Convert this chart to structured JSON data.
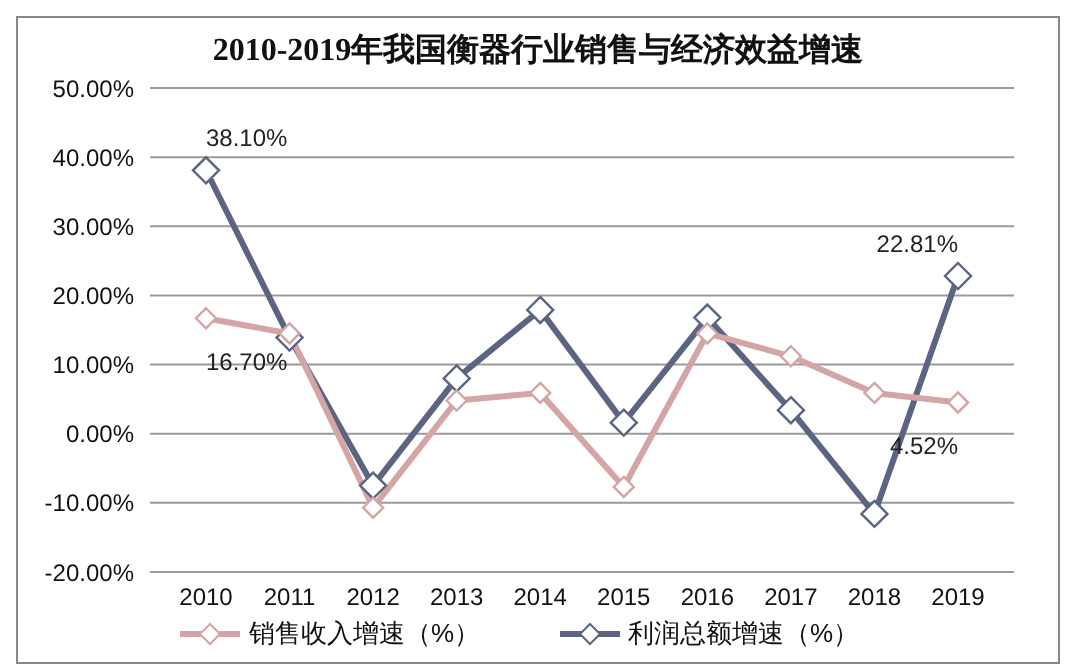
{
  "chart_data": {
    "type": "line",
    "title": "2010-2019年我国衡器行业销售与经济效益增速",
    "categories": [
      "2010",
      "2011",
      "2012",
      "2013",
      "2014",
      "2015",
      "2016",
      "2017",
      "2018",
      "2019"
    ],
    "series": [
      {
        "name": "销售收入增速（%）",
        "color": "#d4a5a5",
        "values": [
          16.7,
          14.5,
          -10.7,
          4.8,
          5.9,
          -7.7,
          14.5,
          11.2,
          5.9,
          4.52
        ],
        "value_labels": [
          "16.70%",
          null,
          null,
          null,
          null,
          null,
          null,
          null,
          null,
          "4.52%"
        ]
      },
      {
        "name": "利润总额增速（%）",
        "color": "#5b6582",
        "values": [
          38.1,
          13.9,
          -7.5,
          8.0,
          17.9,
          1.6,
          16.8,
          3.4,
          -11.6,
          22.81
        ],
        "value_labels": [
          "38.10%",
          null,
          null,
          null,
          null,
          null,
          null,
          null,
          null,
          "22.81%"
        ]
      }
    ],
    "ylim": [
      -20,
      50
    ],
    "yticks": [
      {
        "value": -20,
        "label": "-20.00%"
      },
      {
        "value": -10,
        "label": "-10.00%"
      },
      {
        "value": 0,
        "label": "0.00%"
      },
      {
        "value": 10,
        "label": "10.00%"
      },
      {
        "value": 20,
        "label": "20.00%"
      },
      {
        "value": 30,
        "label": "30.00%"
      },
      {
        "value": 40,
        "label": "40.00%"
      },
      {
        "value": 50,
        "label": "50.00%"
      }
    ],
    "grid": "y",
    "legend": "bottom",
    "marker": "diamond",
    "line_style": "solid"
  }
}
